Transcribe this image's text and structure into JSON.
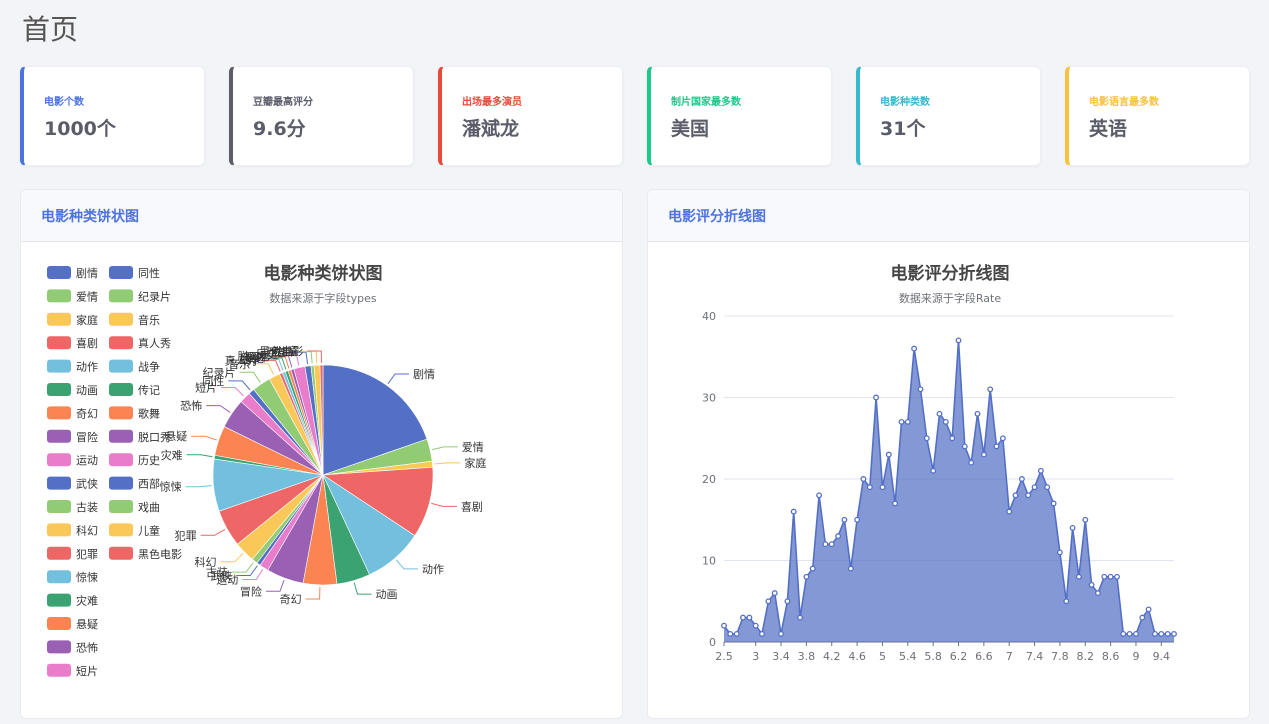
{
  "page_title": "首页",
  "cards": [
    {
      "label": "电影个数",
      "value": "1000个",
      "color": "#4e73df"
    },
    {
      "label": "豆瓣最高评分",
      "value": "9.6分",
      "color": "#5a5c69"
    },
    {
      "label": "出场最多演员",
      "value": "潘斌龙",
      "color": "#e74a3b"
    },
    {
      "label": "制片国家最多数",
      "value": "美国",
      "color": "#1cc88a"
    },
    {
      "label": "电影种类数",
      "value": "31个",
      "color": "#36b9cc"
    },
    {
      "label": "电影语言最多数",
      "value": "英语",
      "color": "#f6c23e"
    }
  ],
  "pie_panel": {
    "header": "电影种类饼状图"
  },
  "line_panel": {
    "header": "电影评分折线图"
  },
  "palette": [
    "#5470c6",
    "#91cc75",
    "#fac858",
    "#ee6666",
    "#73c0de",
    "#3ba272",
    "#fc8452",
    "#9a60b4",
    "#ea7ccc"
  ],
  "chart_data": [
    {
      "type": "pie",
      "title": "电影种类饼状图",
      "subtitle": "数据来源于字段types",
      "legend_position": "left",
      "legend_entries": [
        "剧情",
        "爱情",
        "家庭",
        "喜剧",
        "动作",
        "动画",
        "奇幻",
        "冒险",
        "运动",
        "武侠",
        "古装",
        "科幻",
        "犯罪",
        "惊悚",
        "灾难",
        "悬疑",
        "恐怖",
        "短片",
        "同性",
        "纪录片",
        "音乐",
        "真人秀",
        "战争",
        "传记",
        "歌舞",
        "脱口秀",
        "历史",
        "西部",
        "戏曲",
        "儿童",
        "黑色电影"
      ],
      "slices": [
        {
          "name": "剧情",
          "value": 180
        },
        {
          "name": "爱情",
          "value": 30
        },
        {
          "name": "家庭",
          "value": 8
        },
        {
          "name": "喜剧",
          "value": 95
        },
        {
          "name": "动作",
          "value": 80
        },
        {
          "name": "动画",
          "value": 45
        },
        {
          "name": "奇幻",
          "value": 45
        },
        {
          "name": "冒险",
          "value": 50
        },
        {
          "name": "运动",
          "value": 12
        },
        {
          "name": "武侠",
          "value": 5
        },
        {
          "name": "古装",
          "value": 8
        },
        {
          "name": "科幻",
          "value": 28
        },
        {
          "name": "犯罪",
          "value": 50
        },
        {
          "name": "惊悚",
          "value": 70
        },
        {
          "name": "灾难",
          "value": 5
        },
        {
          "name": "悬疑",
          "value": 40
        },
        {
          "name": "恐怖",
          "value": 40
        },
        {
          "name": "短片",
          "value": 15
        },
        {
          "name": "同性",
          "value": 8
        },
        {
          "name": "纪录片",
          "value": 25
        },
        {
          "name": "音乐",
          "value": 15
        },
        {
          "name": "真人秀",
          "value": 4
        },
        {
          "name": "战争",
          "value": 4
        },
        {
          "name": "传记",
          "value": 4
        },
        {
          "name": "歌舞",
          "value": 4
        },
        {
          "name": "脱口秀",
          "value": 4
        },
        {
          "name": "历史",
          "value": 15
        },
        {
          "name": "西部",
          "value": 8
        },
        {
          "name": "戏曲",
          "value": 4
        },
        {
          "name": "儿童",
          "value": 8
        },
        {
          "name": "黑色电影",
          "value": 4
        }
      ]
    },
    {
      "type": "area",
      "title": "电影评分折线图",
      "subtitle": "数据来源于字段Rate",
      "x_tick_labels": [
        "2.5",
        "3",
        "3.4",
        "3.8",
        "4.2",
        "4.6",
        "5",
        "5.4",
        "5.8",
        "6.2",
        "6.6",
        "7",
        "7.4",
        "7.8",
        "8.2",
        "8.6",
        "9",
        "9.4"
      ],
      "ylim": [
        0,
        40
      ],
      "y_ticks": [
        0,
        10,
        20,
        30,
        40
      ],
      "grid": true,
      "color": "#5470c6",
      "x": [
        2.5,
        2.6,
        2.7,
        2.8,
        2.9,
        3.0,
        3.1,
        3.2,
        3.3,
        3.4,
        3.5,
        3.6,
        3.7,
        3.8,
        3.9,
        4.0,
        4.1,
        4.2,
        4.3,
        4.4,
        4.5,
        4.6,
        4.7,
        4.8,
        4.9,
        5.0,
        5.1,
        5.2,
        5.3,
        5.4,
        5.5,
        5.6,
        5.7,
        5.8,
        5.9,
        6.0,
        6.1,
        6.2,
        6.3,
        6.4,
        6.5,
        6.6,
        6.7,
        6.8,
        6.9,
        7.0,
        7.1,
        7.2,
        7.3,
        7.4,
        7.5,
        7.6,
        7.7,
        7.8,
        7.9,
        8.0,
        8.1,
        8.2,
        8.3,
        8.4,
        8.5,
        8.6,
        8.7,
        8.8,
        8.9,
        9.0,
        9.1,
        9.2,
        9.3,
        9.4,
        9.5,
        9.6
      ],
      "y": [
        2,
        1,
        1,
        3,
        3,
        2,
        1,
        5,
        6,
        1,
        5,
        16,
        3,
        8,
        9,
        18,
        12,
        12,
        13,
        15,
        9,
        15,
        20,
        19,
        30,
        19,
        23,
        17,
        27,
        27,
        36,
        31,
        25,
        21,
        28,
        27,
        25,
        37,
        24,
        22,
        28,
        23,
        31,
        24,
        25,
        16,
        18,
        20,
        18,
        19,
        21,
        19,
        17,
        11,
        5,
        14,
        8,
        15,
        7,
        6,
        8,
        8,
        8,
        1,
        1,
        1,
        3,
        4,
        1,
        1,
        1,
        1
      ]
    }
  ]
}
